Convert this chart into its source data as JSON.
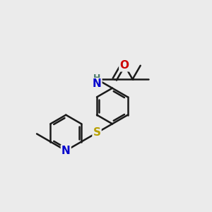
{
  "background_color": "#ebebeb",
  "bond_color": "#1a1a1a",
  "bond_width": 1.8,
  "atom_colors": {
    "N": "#0000cc",
    "O": "#cc0000",
    "S": "#b8a000",
    "H": "#4a7a6a"
  },
  "font_size": 10,
  "figsize": [
    3.0,
    3.0
  ],
  "dpi": 100
}
